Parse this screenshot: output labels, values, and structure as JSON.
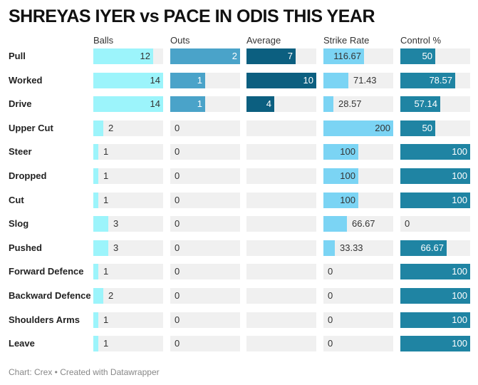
{
  "title": "SHREYAS IYER vs PACE IN ODIS THIS YEAR",
  "footer": "Chart: Crex • Created with Datawrapper",
  "colors": {
    "balls": "#9cf4fb",
    "outs": "#4aa3c9",
    "average": "#0c5f80",
    "strike_rate": "#7bd4f4",
    "control": "#1f84a3",
    "track": "#f0f0f0"
  },
  "chart_data": {
    "type": "table",
    "columns": [
      {
        "key": "balls",
        "label": "Balls",
        "max": 14
      },
      {
        "key": "outs",
        "label": "Outs",
        "max": 2
      },
      {
        "key": "average",
        "label": "Average",
        "max": 10
      },
      {
        "key": "strike_rate",
        "label": "Strike Rate",
        "max": 200
      },
      {
        "key": "control",
        "label": "Control %",
        "max": 100
      }
    ],
    "rows": [
      {
        "shot": "Pull",
        "balls": 12,
        "outs": 2,
        "average": 7,
        "strike_rate": 116.67,
        "control": 50
      },
      {
        "shot": "Worked",
        "balls": 14,
        "outs": 1,
        "average": 10,
        "strike_rate": 71.43,
        "control": 78.57
      },
      {
        "shot": "Drive",
        "balls": 14,
        "outs": 1,
        "average": 4,
        "strike_rate": 28.57,
        "control": 57.14
      },
      {
        "shot": "Upper Cut",
        "balls": 2,
        "outs": 0,
        "average": null,
        "strike_rate": 200,
        "control": 50
      },
      {
        "shot": "Steer",
        "balls": 1,
        "outs": 0,
        "average": null,
        "strike_rate": 100,
        "control": 100
      },
      {
        "shot": "Dropped",
        "balls": 1,
        "outs": 0,
        "average": null,
        "strike_rate": 100,
        "control": 100
      },
      {
        "shot": "Cut",
        "balls": 1,
        "outs": 0,
        "average": null,
        "strike_rate": 100,
        "control": 100
      },
      {
        "shot": "Slog",
        "balls": 3,
        "outs": 0,
        "average": null,
        "strike_rate": 66.67,
        "control": 0
      },
      {
        "shot": "Pushed",
        "balls": 3,
        "outs": 0,
        "average": null,
        "strike_rate": 33.33,
        "control": 66.67
      },
      {
        "shot": "Forward Defence",
        "balls": 1,
        "outs": 0,
        "average": null,
        "strike_rate": 0,
        "control": 100
      },
      {
        "shot": "Backward Defence",
        "balls": 2,
        "outs": 0,
        "average": null,
        "strike_rate": 0,
        "control": 100
      },
      {
        "shot": "Shoulders Arms",
        "balls": 1,
        "outs": 0,
        "average": null,
        "strike_rate": 0,
        "control": 100
      },
      {
        "shot": "Leave",
        "balls": 1,
        "outs": 0,
        "average": null,
        "strike_rate": 0,
        "control": 100
      }
    ]
  }
}
